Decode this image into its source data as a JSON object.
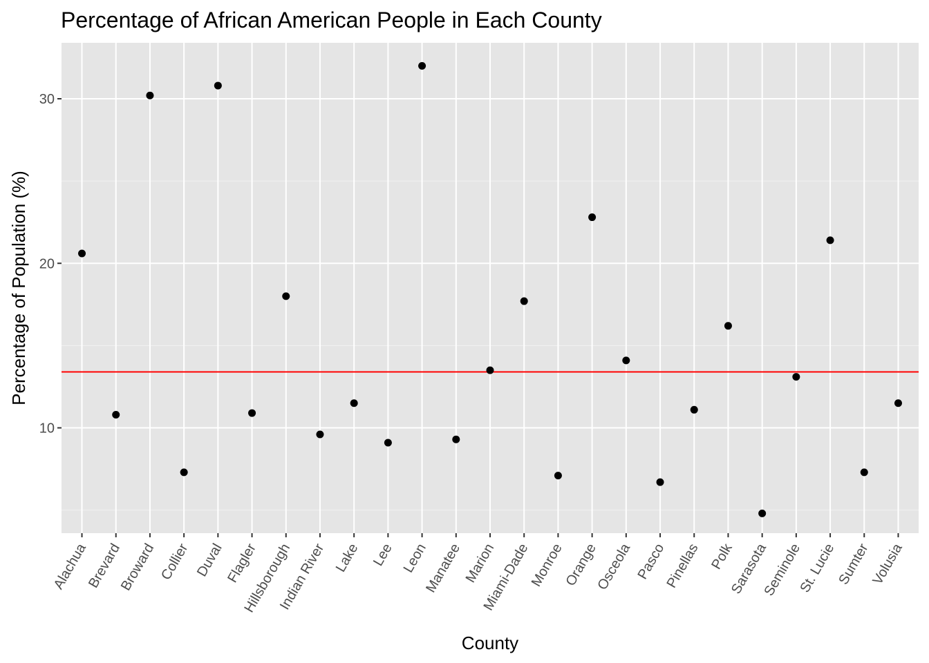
{
  "chart_data": {
    "type": "scatter",
    "title": "Percentage of African American People in Each County",
    "xlabel": "County",
    "ylabel": "Percentage of Population (%)",
    "categories": [
      "Alachua",
      "Brevard",
      "Broward",
      "Collier",
      "Duval",
      "Flagler",
      "Hillsborough",
      "Indian River",
      "Lake",
      "Lee",
      "Leon",
      "Manatee",
      "Marion",
      "Miami-Dade",
      "Monroe",
      "Orange",
      "Osceola",
      "Pasco",
      "Pinellas",
      "Polk",
      "Sarasota",
      "Seminole",
      "St. Lucie",
      "Sumter",
      "Volusia"
    ],
    "values": [
      20.6,
      10.8,
      30.2,
      7.3,
      30.8,
      10.9,
      18.0,
      9.6,
      11.5,
      9.1,
      32.0,
      9.3,
      13.5,
      17.7,
      7.1,
      22.8,
      14.1,
      6.7,
      11.1,
      16.2,
      4.8,
      13.1,
      21.4,
      7.3,
      11.5
    ],
    "yticks": [
      10,
      20,
      30
    ],
    "ylim": [
      3.6,
      33.4
    ],
    "reference_line": {
      "y": 13.4,
      "color": "#ff0000"
    },
    "point_color": "#000000",
    "panel_background": "#e5e5e5",
    "grid": true,
    "legend": "none"
  }
}
